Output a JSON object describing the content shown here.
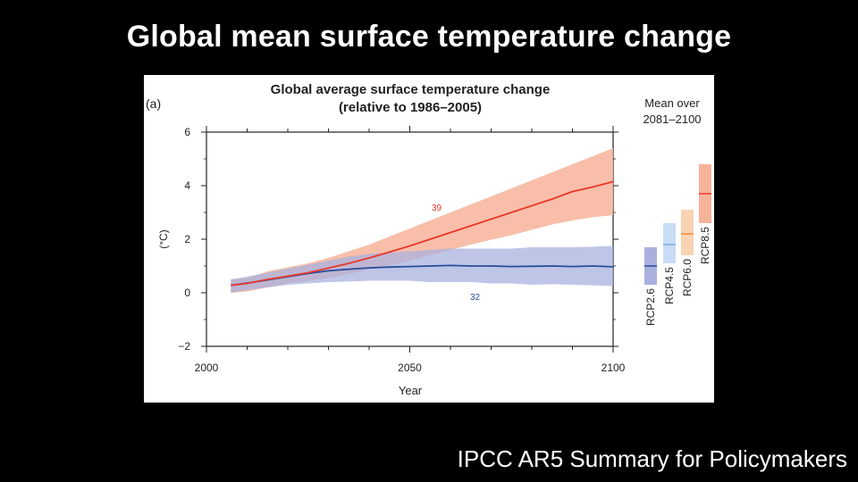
{
  "slide": {
    "title": "Global mean surface temperature change",
    "source": "IPCC AR5 Summary for Policymakers"
  },
  "chart_data": {
    "type": "line",
    "panel_label": "(a)",
    "title": "Global average surface temperature change",
    "subtitle": "(relative to 1986–2005)",
    "xlabel": "Year",
    "ylabel": "(°C)",
    "xlim": [
      2000,
      2100
    ],
    "ylim": [
      -2,
      6
    ],
    "xticks": [
      2000,
      2050,
      2100
    ],
    "yticks": [
      -2,
      0,
      2,
      4,
      6
    ],
    "ytick_labels": [
      "−2",
      "0",
      "2",
      "4",
      "6"
    ],
    "grid": false,
    "series": [
      {
        "color": "#e8382b",
        "band_color": "#f7b39a",
        "model_count": "39",
        "x": [
          2006,
          2010,
          2015,
          2020,
          2025,
          2030,
          2035,
          2040,
          2045,
          2050,
          2055,
          2060,
          2065,
          2070,
          2075,
          2080,
          2085,
          2090,
          2095,
          2100
        ],
        "values": [
          0.28,
          0.35,
          0.5,
          0.62,
          0.75,
          0.92,
          1.1,
          1.3,
          1.52,
          1.75,
          2.0,
          2.25,
          2.5,
          2.75,
          3.0,
          3.25,
          3.5,
          3.78,
          3.95,
          4.15
        ],
        "lower": [
          0.0,
          0.05,
          0.2,
          0.35,
          0.45,
          0.55,
          0.7,
          0.88,
          1.02,
          1.2,
          1.4,
          1.6,
          1.8,
          1.98,
          2.15,
          2.35,
          2.55,
          2.7,
          2.82,
          2.9
        ],
        "upper": [
          0.5,
          0.55,
          0.8,
          0.95,
          1.1,
          1.3,
          1.55,
          1.8,
          2.1,
          2.4,
          2.7,
          3.0,
          3.3,
          3.6,
          3.9,
          4.2,
          4.5,
          4.8,
          5.1,
          5.4
        ]
      },
      {
        "color": "#2a4d9c",
        "band_color": "#aab1df",
        "model_count": "32",
        "x": [
          2006,
          2010,
          2015,
          2020,
          2025,
          2030,
          2035,
          2040,
          2045,
          2050,
          2055,
          2060,
          2065,
          2070,
          2075,
          2080,
          2085,
          2090,
          2095,
          2100
        ],
        "values": [
          0.28,
          0.36,
          0.48,
          0.6,
          0.72,
          0.82,
          0.88,
          0.93,
          0.96,
          0.98,
          1.0,
          1.02,
          1.0,
          1.0,
          0.98,
          0.99,
          1.0,
          0.98,
          1.0,
          0.97
        ],
        "lower": [
          0.0,
          0.1,
          0.2,
          0.3,
          0.35,
          0.4,
          0.42,
          0.45,
          0.45,
          0.45,
          0.4,
          0.4,
          0.4,
          0.35,
          0.35,
          0.3,
          0.32,
          0.3,
          0.28,
          0.25
        ],
        "upper": [
          0.5,
          0.6,
          0.75,
          0.9,
          1.05,
          1.2,
          1.35,
          1.45,
          1.5,
          1.55,
          1.6,
          1.65,
          1.65,
          1.65,
          1.65,
          1.7,
          1.7,
          1.7,
          1.72,
          1.75
        ]
      }
    ],
    "mean_panel": {
      "title_line1": "Mean over",
      "title_line2": "2081–2100",
      "bars": [
        {
          "label": "RCP2.6",
          "mean": 1.0,
          "lower": 0.3,
          "upper": 1.7,
          "color": "#2a4d9c",
          "band_color": "#aab1df"
        },
        {
          "label": "RCP4.5",
          "mean": 1.8,
          "lower": 1.1,
          "upper": 2.6,
          "color": "#7fb2e8",
          "band_color": "#c9dcf6"
        },
        {
          "label": "RCP6.0",
          "mean": 2.2,
          "lower": 1.4,
          "upper": 3.1,
          "color": "#ef8a3a",
          "band_color": "#f9d3b2"
        },
        {
          "label": "RCP8.5",
          "mean": 3.7,
          "lower": 2.6,
          "upper": 4.8,
          "color": "#e8382b",
          "band_color": "#f7b39a"
        }
      ]
    }
  }
}
